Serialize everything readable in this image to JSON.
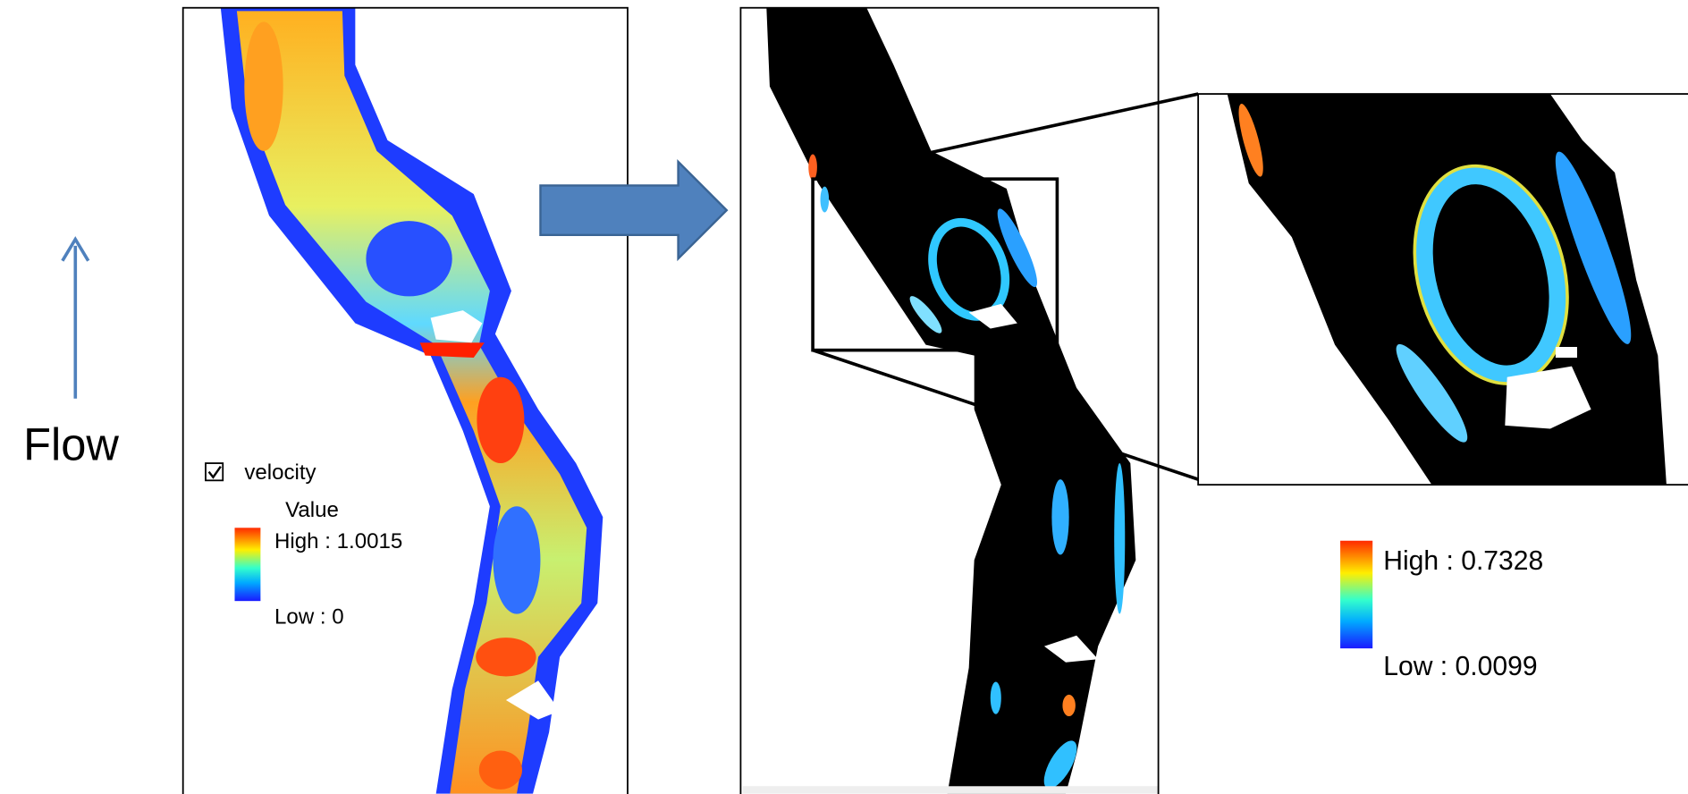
{
  "flow_label": "Flow",
  "left_panel": {
    "legend": {
      "layer": "velocity",
      "title": "Value",
      "high": "High : 1.0015",
      "low": "Low : 0"
    }
  },
  "right_panel": {
    "legend": {
      "high": "High : 0.7328",
      "low": "Low : 0.0099"
    }
  }
}
